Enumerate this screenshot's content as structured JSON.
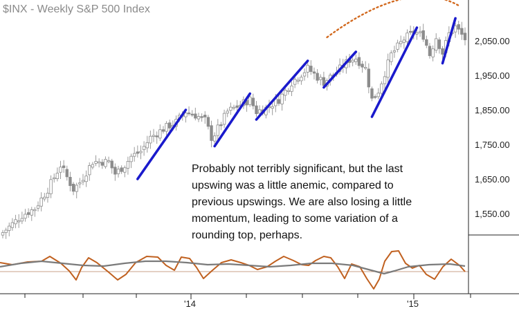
{
  "chart_data": {
    "type": "candlestick",
    "title": "$INX - Weekly  S&P 500 Index",
    "y_axis": {
      "ticks": [
        2050,
        1950,
        1850,
        1750,
        1650,
        1550
      ],
      "tick_labels": [
        "2,050.00",
        "1,950.00",
        "1,850.00",
        "1,750.00",
        "1,650.00",
        "1,550.00"
      ],
      "range": [
        1475,
        2185
      ],
      "position": "right"
    },
    "x_axis": {
      "tick_labels": [
        "'14",
        "'15"
      ]
    },
    "grid": false,
    "annotation": {
      "lines": [
        "Probably not terribly significant, but the last",
        "upswing was a little anemic, compared to",
        "previous upswings. We are also losing a little",
        "momentum, leading to some variation of a",
        "rounding top, perhaps."
      ]
    },
    "upswings": [
      {
        "from": [
          42,
          1650
        ],
        "to": [
          57,
          1850
        ]
      },
      {
        "from": [
          66,
          1745
        ],
        "to": [
          77,
          1897
        ]
      },
      {
        "from": [
          79,
          1822
        ],
        "to": [
          95,
          1992
        ]
      },
      {
        "from": [
          100,
          1915
        ],
        "to": [
          110,
          2018
        ]
      },
      {
        "from": [
          115,
          1830
        ],
        "to": [
          129,
          2088
        ]
      },
      {
        "from": [
          137,
          1985
        ],
        "to": [
          141,
          2115
        ]
      }
    ],
    "rounding_top": {
      "from": [
        101,
        2060
      ],
      "peak": [
        124,
        2170
      ],
      "to": [
        142,
        2152
      ]
    },
    "oscillator": {
      "series": [
        {
          "color": "#c0601f",
          "role": "momentum"
        },
        {
          "color": "#7a7a7a",
          "role": "signal"
        }
      ],
      "baseline": true
    },
    "colors": {
      "candle": "#aaaaaa",
      "trend_lines": "#1a1acc",
      "rounding_top": "#d2691e",
      "title": "#8a8a8a"
    }
  }
}
